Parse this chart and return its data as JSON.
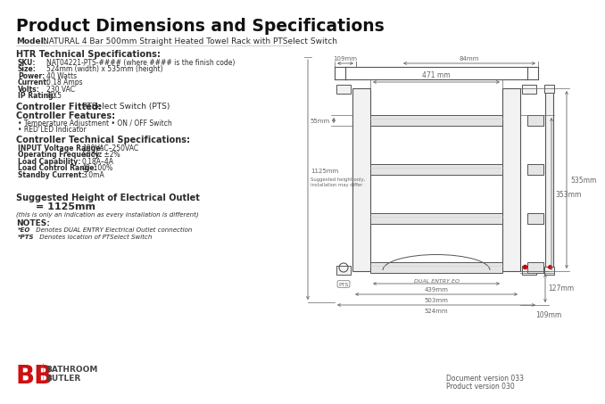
{
  "title": "Product Dimensions and Specifications",
  "model_label": "Model:",
  "model_name": "NATURAL 4 Bar 500mm Straight Heated Towel Rack with PTSelect Switch",
  "bg_color": "#ffffff",
  "title_color": "#1a1a1a",
  "text_color": "#2a2a2a",
  "line_color": "#555555",
  "red_color": "#cc2222",
  "section_headings": [
    "HTR Technical Specifications:",
    "Controller Fitted:",
    "Controller Features:",
    "Controller Technical Specifications:",
    "Suggested Height of Electrical Outlet",
    "NOTES:"
  ],
  "htr_specs": [
    [
      "SKU:",
      "NAT04221-PTS-#### (where #### is the finish code)"
    ],
    [
      "Size:",
      "524mm (width) x 535mm (height)"
    ],
    [
      "Power:",
      "40 Watts"
    ],
    [
      "Current:",
      "0.18 Amps"
    ],
    [
      "Volts:",
      "230 VAC"
    ],
    [
      "IP Rating:",
      "IPX5"
    ]
  ],
  "controller_fitted": "PTSelect Switch (PTS)",
  "controller_features": [
    "Temperature Adjustment • ON / OFF Switch",
    "RED LED Indicator"
  ],
  "controller_tech_specs": [
    [
      "INPUT Voltage Range:",
      "190VAC–250VAC"
    ],
    [
      "Operating Frequency:",
      "50 Hz ±2%"
    ],
    [
      "Load Capability:",
      "0.18A–4A"
    ],
    [
      "Load Control Range:",
      "40–100%"
    ],
    [
      "Standby Current:",
      "3.0mA"
    ]
  ],
  "outlet_heading": "Suggested Height of Electrical Outlet",
  "outlet_height": "= 1125mm",
  "outlet_note": "(this is only an indication as every installation is different)",
  "notes_heading": "NOTES:",
  "notes": [
    [
      "*EO",
      " Denotes DUAL ENTRY Electrical Outlet connection"
    ],
    [
      "*PTS",
      " Denotes location of PTSelect Switch"
    ]
  ],
  "footer_doc": "Document version 033",
  "footer_prod": "Product version 030",
  "logo_text1": "BATHROOM",
  "logo_text2": "BUTLER",
  "dims": {
    "top_bar_left": "109mm",
    "top_bar_right": "84mm",
    "width_bar": "471 mm",
    "left_gap": "55mm",
    "right_height1": "353mm",
    "right_height2": "535mm",
    "bottom_right": "127mm",
    "side_right": "109mm",
    "bottom1": "439mm",
    "bottom2": "503mm",
    "bottom3": "524mm",
    "left_height": "1125mm",
    "left_note": "Suggested height only,\ninstallation may differ",
    "dual_entry": "DUAL ENTRY EO"
  }
}
